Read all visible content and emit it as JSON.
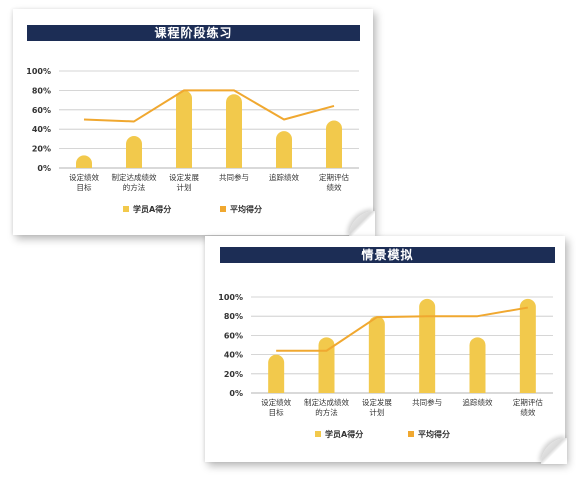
{
  "chart_data": [
    {
      "type": "bar",
      "title": "课程阶段练习",
      "categories": [
        "设定绩效\n目标",
        "制定达成绩效\n的方法",
        "设定发展\n计划",
        "共同参与",
        "追踪绩效",
        "定期评估\n绩效"
      ],
      "ylim": [
        0,
        100
      ],
      "yticks": [
        "0%",
        "20%",
        "40%",
        "60%",
        "80%",
        "100%"
      ],
      "grid": true,
      "legend_position": "bottom",
      "series": [
        {
          "name": "学员A得分",
          "type": "bar",
          "color": "#f2c94c",
          "values": [
            13,
            33,
            80,
            76,
            38,
            49
          ]
        },
        {
          "name": "平均得分",
          "type": "line",
          "color": "#f0a830",
          "values": [
            50,
            48,
            80,
            80,
            50,
            64
          ]
        }
      ]
    },
    {
      "type": "bar",
      "title": "情景模拟",
      "categories": [
        "设定绩效\n目标",
        "制定达成绩效\n的方法",
        "设定发展\n计划",
        "共同参与",
        "追踪绩效",
        "定期评估\n绩效"
      ],
      "ylim": [
        0,
        100
      ],
      "yticks": [
        "0%",
        "20%",
        "40%",
        "60%",
        "80%",
        "100%"
      ],
      "grid": true,
      "legend_position": "bottom",
      "series": [
        {
          "name": "学员A得分",
          "type": "bar",
          "color": "#f2c94c",
          "values": [
            40,
            58,
            80,
            98,
            58,
            98
          ]
        },
        {
          "name": "平均得分",
          "type": "line",
          "color": "#f0a830",
          "values": [
            44,
            44,
            79,
            80,
            80,
            89
          ]
        }
      ]
    }
  ]
}
